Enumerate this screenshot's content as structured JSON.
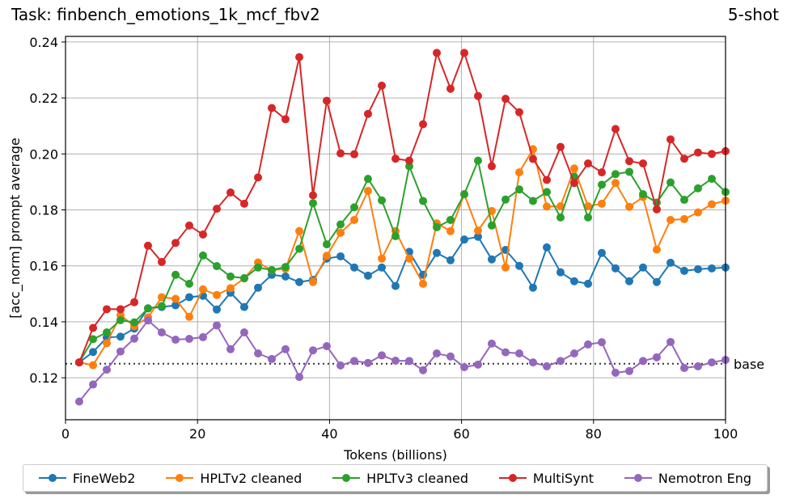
{
  "header": {
    "title": "Task: finbench_emotions_1k_mcf_fbv2",
    "shot": "5-shot"
  },
  "chart_data": {
    "type": "line",
    "title": "Task: finbench_emotions_1k_mcf_fbv2",
    "subtitle": "5-shot",
    "xlabel": "Tokens (billions)",
    "ylabel": "[acc_norm] prompt average",
    "xlim": [
      0,
      100
    ],
    "ylim": [
      0.105,
      0.242
    ],
    "xticks": [
      "0",
      "20",
      "40",
      "60",
      "80",
      "100"
    ],
    "yticks": [
      "0.12",
      "0.14",
      "0.16",
      "0.18",
      "0.20",
      "0.22",
      "0.24"
    ],
    "grid": true,
    "legend_position": "bottom",
    "baseline": {
      "label": "base",
      "value": 0.125
    },
    "x": [
      2.08,
      4.17,
      6.25,
      8.33,
      10.42,
      12.5,
      14.58,
      16.67,
      18.75,
      20.83,
      22.92,
      25.0,
      27.08,
      29.17,
      31.25,
      33.33,
      35.42,
      37.5,
      39.58,
      41.67,
      43.75,
      45.83,
      47.92,
      50.0,
      52.08,
      54.17,
      56.25,
      58.33,
      60.42,
      62.5,
      64.58,
      66.67,
      68.75,
      70.83,
      72.92,
      75.0,
      77.08,
      79.17,
      81.25,
      83.33,
      85.42,
      87.5,
      89.58,
      91.67,
      93.75,
      95.83,
      97.92,
      100.0
    ],
    "series": [
      {
        "name": "FineWeb2",
        "color": "#1f77b4",
        "values": [
          0.1255,
          0.1292,
          0.1344,
          0.1347,
          0.1376,
          0.1448,
          0.1453,
          0.1459,
          0.1488,
          0.1493,
          0.1444,
          0.1504,
          0.1453,
          0.1522,
          0.1568,
          0.1562,
          0.1542,
          0.155,
          0.1626,
          0.1634,
          0.1594,
          0.1565,
          0.1594,
          0.1528,
          0.165,
          0.1568,
          0.1646,
          0.162,
          0.1694,
          0.1704,
          0.1623,
          0.1657,
          0.16,
          0.1522,
          0.1666,
          0.1577,
          0.1545,
          0.1536,
          0.1646,
          0.1591,
          0.1545,
          0.1594,
          0.1542,
          0.1611,
          0.1582,
          0.1588,
          0.1591,
          0.1594
        ]
      },
      {
        "name": "HPLTv2 cleaned",
        "color": "#ff7f0e",
        "values": [
          0.1255,
          0.1245,
          0.1324,
          0.1424,
          0.1384,
          0.1416,
          0.1488,
          0.1482,
          0.1418,
          0.1516,
          0.1496,
          0.152,
          0.1555,
          0.1612,
          0.1584,
          0.159,
          0.1724,
          0.1542,
          0.1636,
          0.1718,
          0.1764,
          0.1868,
          0.1626,
          0.1724,
          0.1626,
          0.1536,
          0.1752,
          0.1724,
          0.1856,
          0.1726,
          0.1796,
          0.1594,
          0.1934,
          0.2017,
          0.1812,
          0.1813,
          0.1948,
          0.1813,
          0.1822,
          0.1896,
          0.1811,
          0.1846,
          0.1658,
          0.1764,
          0.1767,
          0.1791,
          0.182,
          0.1833
        ]
      },
      {
        "name": "HPLTv3 cleaned",
        "color": "#2ca02c",
        "values": [
          0.1255,
          0.1338,
          0.1362,
          0.1406,
          0.1398,
          0.1448,
          0.1456,
          0.1568,
          0.1536,
          0.1637,
          0.1599,
          0.1562,
          0.1556,
          0.1594,
          0.1585,
          0.1596,
          0.1661,
          0.1824,
          0.1677,
          0.1748,
          0.1809,
          0.1911,
          0.1834,
          0.1706,
          0.1956,
          0.1832,
          0.1738,
          0.1764,
          0.1856,
          0.1976,
          0.1744,
          0.1837,
          0.1873,
          0.1832,
          0.1864,
          0.1773,
          0.1918,
          0.1773,
          0.189,
          0.1928,
          0.1936,
          0.1856,
          0.1826,
          0.1898,
          0.1836,
          0.1877,
          0.1911,
          0.1864
        ]
      },
      {
        "name": "MultiSynt",
        "color": "#d62728",
        "values": [
          0.1255,
          0.1378,
          0.1445,
          0.1445,
          0.147,
          0.1672,
          0.1614,
          0.1682,
          0.1744,
          0.1712,
          0.1804,
          0.1862,
          0.1822,
          0.1916,
          0.2164,
          0.2124,
          0.2346,
          0.1852,
          0.219,
          0.2002,
          0.1999,
          0.2143,
          0.2244,
          0.1983,
          0.1976,
          0.2106,
          0.2361,
          0.2233,
          0.2361,
          0.2207,
          0.1956,
          0.2197,
          0.2149,
          0.1982,
          0.1907,
          0.2025,
          0.1896,
          0.1966,
          0.1934,
          0.2089,
          0.1974,
          0.1966,
          0.1802,
          0.2052,
          0.1983,
          0.2005,
          0.2,
          0.201
        ]
      },
      {
        "name": "Nemotron Eng",
        "color": "#9467bd",
        "values": [
          0.1115,
          0.1176,
          0.1229,
          0.1294,
          0.134,
          0.1405,
          0.1362,
          0.1336,
          0.1339,
          0.1345,
          0.1387,
          0.1302,
          0.1362,
          0.1287,
          0.1267,
          0.1302,
          0.1203,
          0.1298,
          0.1313,
          0.1244,
          0.126,
          0.1253,
          0.128,
          0.1261,
          0.126,
          0.1227,
          0.1287,
          0.1276,
          0.1238,
          0.1247,
          0.1322,
          0.1291,
          0.1287,
          0.1255,
          0.1241,
          0.126,
          0.1287,
          0.1319,
          0.1327,
          0.1218,
          0.1224,
          0.126,
          0.1273,
          0.1328,
          0.1235,
          0.1241,
          0.1255,
          0.1264
        ]
      }
    ]
  }
}
